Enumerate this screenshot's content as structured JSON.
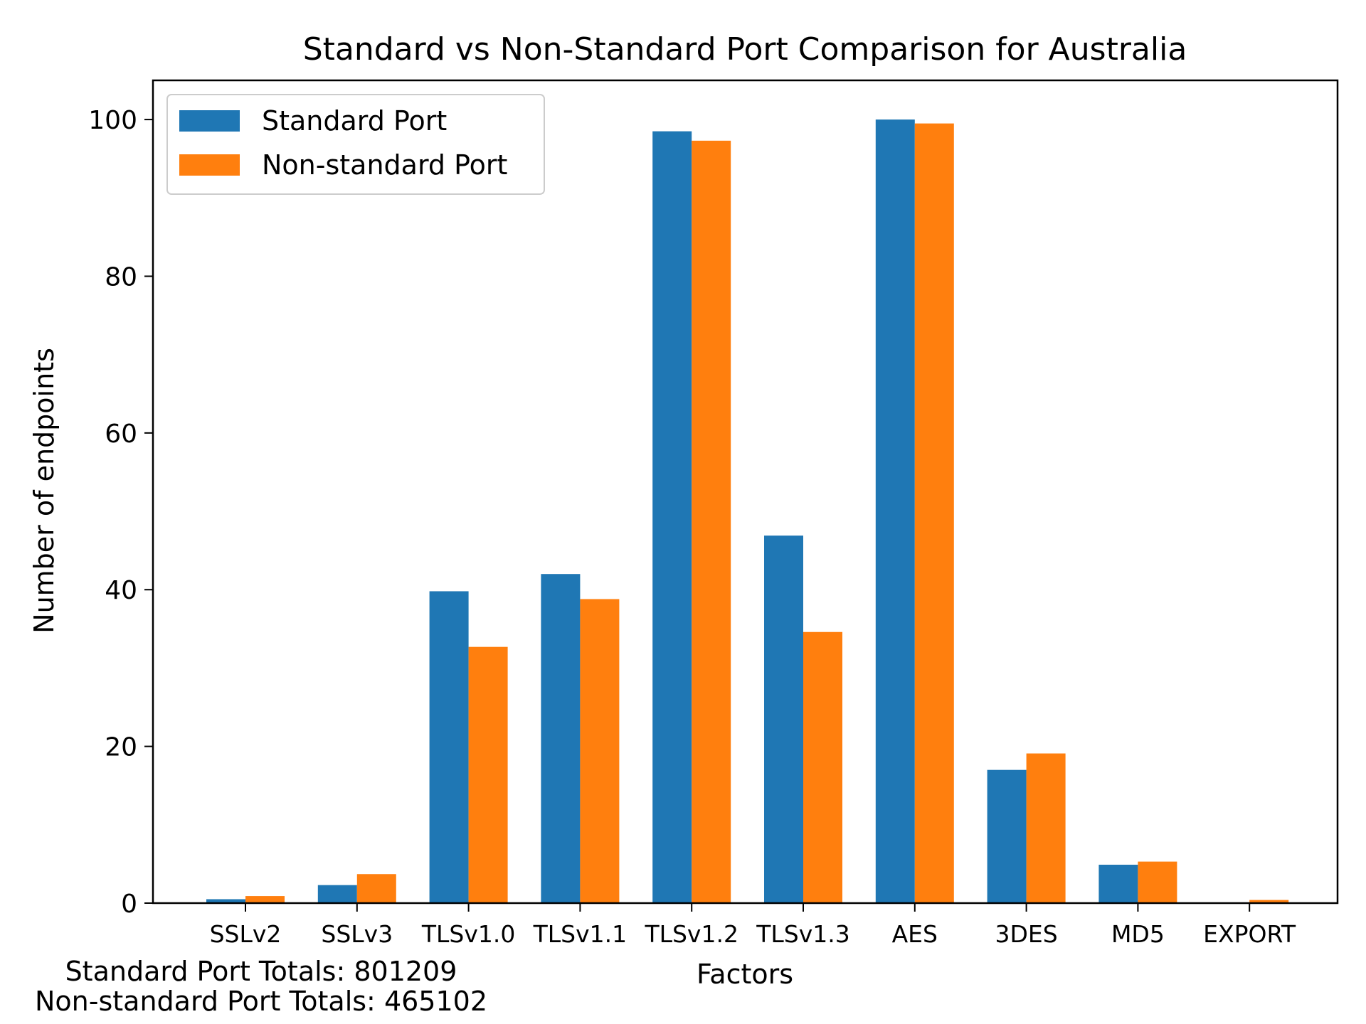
{
  "chart_data": {
    "type": "bar",
    "title": "Standard vs Non-Standard Port Comparison for Australia",
    "xlabel": "Factors",
    "ylabel": "Number of endpoints",
    "categories": [
      "SSLv2",
      "SSLv3",
      "TLSv1.0",
      "TLSv1.1",
      "TLSv1.2",
      "TLSv1.3",
      "AES",
      "3DES",
      "MD5",
      "EXPORT"
    ],
    "series": [
      {
        "name": "Standard Port",
        "color": "#1f77b4",
        "values": [
          0.5,
          2.3,
          39.8,
          42.0,
          98.5,
          46.9,
          100.0,
          17.0,
          4.9,
          0.0
        ]
      },
      {
        "name": "Non-standard Port",
        "color": "#ff7f0e",
        "values": [
          0.9,
          3.7,
          32.7,
          38.8,
          97.3,
          34.6,
          99.5,
          19.1,
          5.3,
          0.4
        ]
      }
    ],
    "ylim": [
      0,
      105
    ],
    "yticks": [
      0,
      20,
      40,
      60,
      80,
      100
    ],
    "grid": false,
    "legend_position": "top-left"
  },
  "footer": {
    "standard_totals": "Standard Port Totals: 801209",
    "nonstandard_totals": "Non-standard Port Totals: 465102"
  }
}
